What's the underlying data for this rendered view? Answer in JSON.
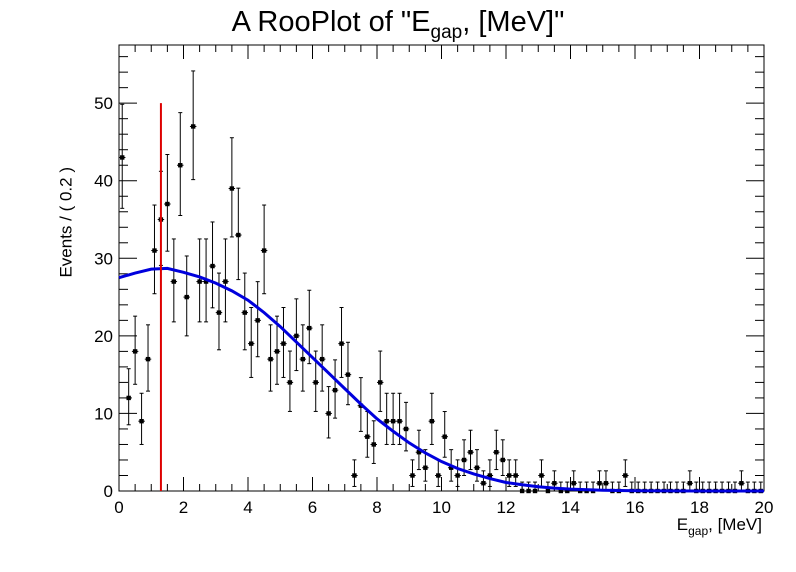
{
  "chart_data": {
    "type": "scatter",
    "title": {
      "main": "A RooPlot of \"E",
      "sub": "gap",
      "tail": ", [MeV]\""
    },
    "xlabel": {
      "main": "E",
      "sub": "gap",
      "tail": ", [MeV]"
    },
    "ylabel": "Events / ( 0.2 )",
    "xlim": [
      0,
      20
    ],
    "ylim": [
      0,
      57.5
    ],
    "x_ticks": [
      0,
      2,
      4,
      6,
      8,
      10,
      12,
      14,
      16,
      18,
      20
    ],
    "x_tick_labels": [
      "0",
      "2",
      "4",
      "6",
      "8",
      "10",
      "12",
      "14",
      "16",
      "18",
      "20"
    ],
    "y_ticks": [
      0,
      10,
      20,
      30,
      40,
      50
    ],
    "y_tick_labels": [
      "0",
      "10",
      "20",
      "30",
      "40",
      "50"
    ],
    "grid": false,
    "colors": {
      "points": "#000000",
      "fit": "#0000dd",
      "marker_line": "#dd0000"
    },
    "series": [
      {
        "kind": "points_with_errors",
        "x": [
          0.1,
          0.3,
          0.5,
          0.7,
          0.9,
          1.1,
          1.3,
          1.5,
          1.7,
          1.9,
          2.1,
          2.3,
          2.5,
          2.7,
          2.9,
          3.1,
          3.3,
          3.5,
          3.7,
          3.9,
          4.1,
          4.3,
          4.5,
          4.7,
          4.9,
          5.1,
          5.3,
          5.5,
          5.7,
          5.9,
          6.1,
          6.3,
          6.5,
          6.7,
          6.9,
          7.1,
          7.3,
          7.5,
          7.7,
          7.9,
          8.1,
          8.3,
          8.5,
          8.7,
          8.9,
          9.1,
          9.3,
          9.5,
          9.7,
          9.9,
          10.1,
          10.3,
          10.5,
          10.7,
          10.9,
          11.1,
          11.3,
          11.5,
          11.7,
          11.9,
          12.1,
          12.3,
          12.5,
          12.7,
          12.9,
          13.1,
          13.3,
          13.5,
          13.7,
          13.9,
          14.1,
          14.3,
          14.5,
          14.7,
          14.9,
          15.1,
          15.3,
          15.5,
          15.7,
          15.9,
          16.1,
          16.3,
          16.5,
          16.7,
          16.9,
          17.1,
          17.3,
          17.5,
          17.7,
          17.9,
          18.1,
          18.3,
          18.5,
          18.7,
          18.9,
          19.1,
          19.3,
          19.5,
          19.7,
          19.9
        ],
        "y": [
          43,
          12,
          18,
          9,
          17,
          31,
          35,
          37,
          27,
          42,
          25,
          47,
          27,
          27,
          29,
          23,
          27,
          39,
          33,
          23,
          19,
          22,
          31,
          17,
          18,
          19,
          14,
          20,
          17,
          21,
          14,
          17,
          10,
          13,
          19,
          15,
          2,
          11,
          7,
          6,
          14,
          9,
          9,
          9,
          8,
          2,
          5,
          3,
          9,
          2,
          7,
          3,
          2,
          4,
          5,
          3,
          1,
          2,
          5,
          4,
          2,
          2,
          0,
          0,
          0,
          2,
          0,
          1,
          0,
          0,
          1,
          0,
          0,
          0,
          1,
          1,
          0,
          0,
          2,
          0,
          0,
          0,
          0,
          0,
          0,
          0,
          0,
          0,
          1,
          0,
          0,
          0,
          0,
          0,
          0,
          0,
          1,
          0,
          0,
          0
        ]
      },
      {
        "kind": "fit_curve",
        "x": [
          0,
          0.5,
          1,
          1.5,
          2,
          2.5,
          3,
          3.5,
          4,
          4.5,
          5,
          5.5,
          6,
          6.5,
          7,
          7.5,
          8,
          8.5,
          9,
          9.5,
          10,
          10.5,
          11,
          11.5,
          12,
          12.5,
          13,
          13.5,
          14,
          15,
          16,
          17,
          18,
          19,
          20
        ],
        "y": [
          27.5,
          28.1,
          28.6,
          28.7,
          28.2,
          27.6,
          26.8,
          25.8,
          24.6,
          23.0,
          21.2,
          19.2,
          17.2,
          15.2,
          13.2,
          11.2,
          9.3,
          7.7,
          6.2,
          4.9,
          3.8,
          2.9,
          2.2,
          1.6,
          1.1,
          0.8,
          0.55,
          0.37,
          0.24,
          0.1,
          0.04,
          0.015,
          0.005,
          0.002,
          0.001
        ]
      }
    ],
    "annotations": [
      {
        "kind": "vertical_line",
        "x": 1.3,
        "y_from": 0,
        "y_to": 50
      }
    ]
  }
}
